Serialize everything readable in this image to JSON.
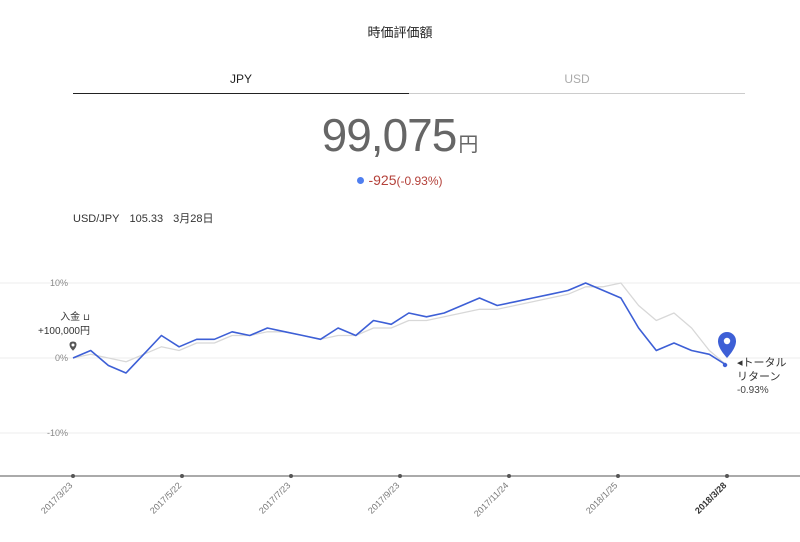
{
  "title": "時価評価額",
  "tabs": [
    {
      "label": "JPY",
      "active": true
    },
    {
      "label": "USD",
      "active": false
    }
  ],
  "value": {
    "amount": "99,075",
    "unit": "円"
  },
  "change": {
    "amount": "-925",
    "percent": "(-0.93%)",
    "dot_color": "#4f7ff0",
    "color": "#b4413a"
  },
  "fx": {
    "pair": "USD/JPY",
    "rate": "105.33",
    "date": "3月28日"
  },
  "deposit": {
    "label": "入金",
    "amount": "+100,000円"
  },
  "total_return": {
    "arrow": "◂",
    "line1": "トータル",
    "line2": "リターン",
    "percent": "-0.93%"
  },
  "colors": {
    "main_line": "#3d5fd6",
    "ref_line": "#d8d8d8",
    "marker": "#3d5fd6"
  },
  "chart_data": {
    "type": "line",
    "y_ticks": [
      "10%",
      "0%",
      "-10%"
    ],
    "ylim": [
      -15,
      13
    ],
    "x_labels": [
      "2017/3/23",
      "2017/5/22",
      "2017/7/23",
      "2017/9/23",
      "2017/11/24",
      "2018/1/25",
      "2018/3/28"
    ],
    "series": [
      {
        "values": [
          0,
          1,
          -1,
          -2,
          0.5,
          3,
          1.5,
          2.5,
          2.5,
          3.5,
          3,
          4,
          3.5,
          3,
          2.5,
          4,
          3,
          5,
          4.5,
          6,
          5.5,
          6,
          7,
          8,
          7,
          7.5,
          8,
          8.5,
          9,
          10,
          9,
          8,
          4,
          1,
          2,
          1,
          0.5,
          -1
        ]
      },
      {
        "values": [
          0,
          0.5,
          0,
          -0.5,
          0.5,
          1.5,
          1,
          2,
          2,
          3,
          3,
          3.5,
          3.5,
          3,
          2.5,
          3,
          3,
          4,
          4,
          5,
          5,
          5.5,
          6,
          6.5,
          6.5,
          7,
          7.5,
          8,
          8.5,
          9.5,
          9.5,
          10,
          7,
          5,
          6,
          4,
          1,
          -1
        ]
      }
    ]
  }
}
